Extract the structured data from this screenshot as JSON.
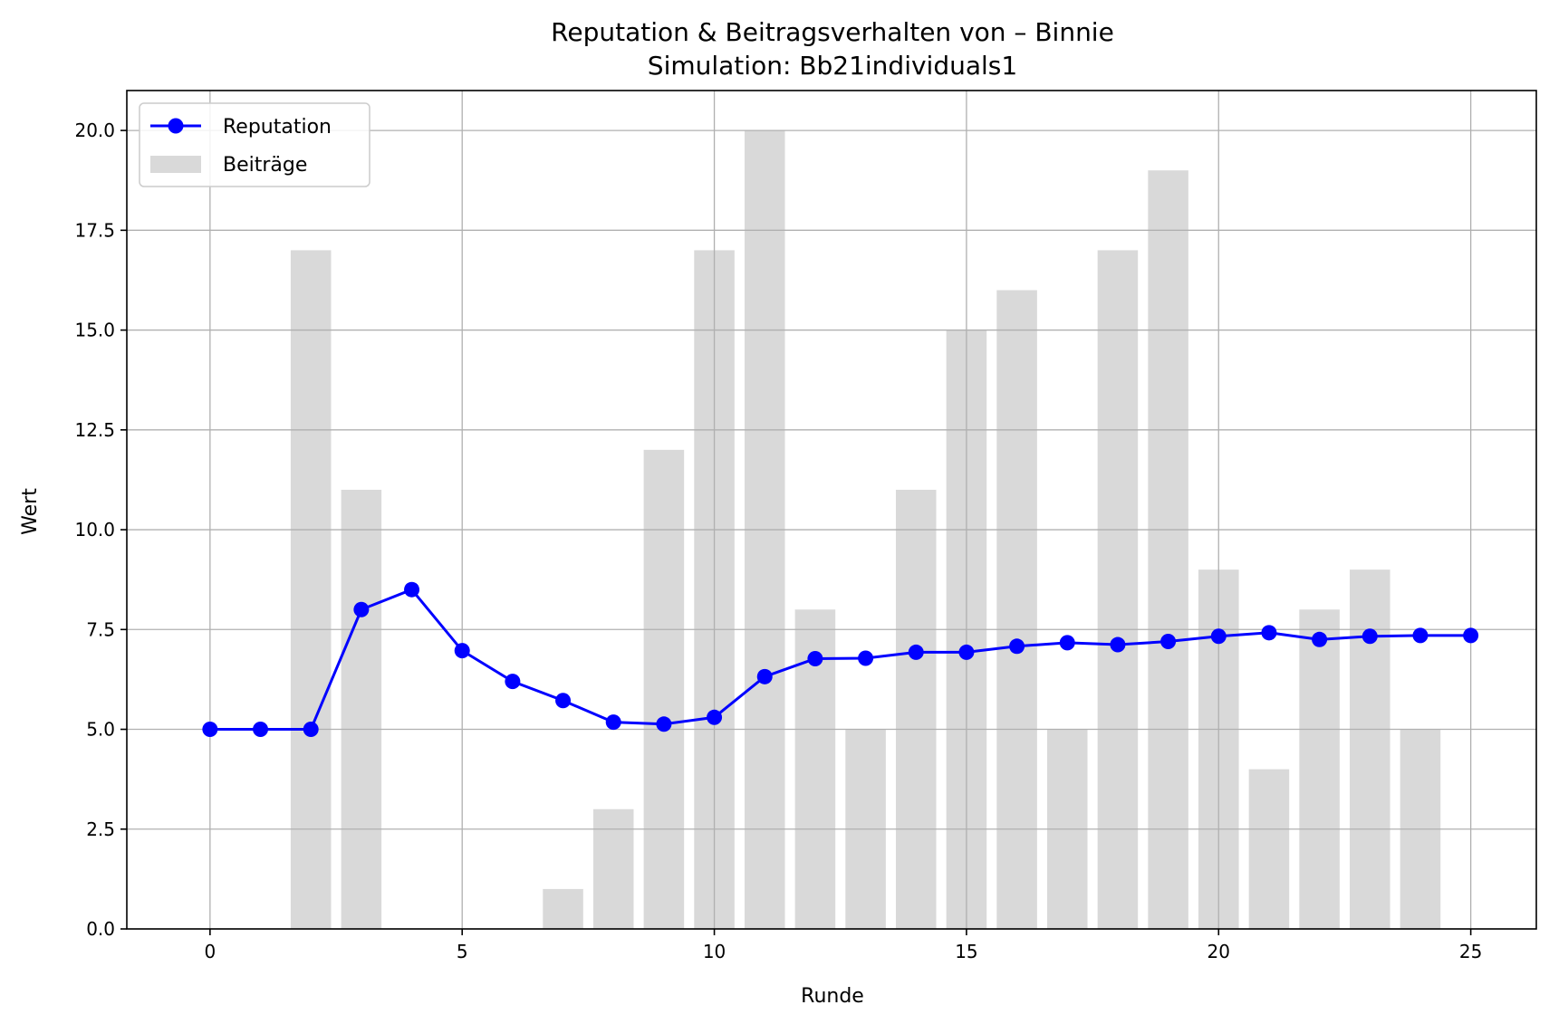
{
  "chart_data": {
    "type": "bar+line",
    "title": "Reputation & Beitragsverhalten von – Binnie",
    "subtitle": "Simulation: Bb21individuals1",
    "xlabel": "Runde",
    "ylabel": "Wert",
    "xlim": [
      -1.65,
      26.3
    ],
    "ylim": [
      0,
      21
    ],
    "xticks": [
      0,
      5,
      10,
      15,
      20,
      25
    ],
    "xtick_labels": [
      "0",
      "5",
      "10",
      "15",
      "20",
      "25"
    ],
    "yticks": [
      0,
      2.5,
      5,
      7.5,
      10,
      12.5,
      15,
      17.5,
      20
    ],
    "ytick_labels": [
      "0.0",
      "2.5",
      "5.0",
      "7.5",
      "10.0",
      "12.5",
      "15.0",
      "17.5",
      "20.0"
    ],
    "grid": true,
    "legend_position": "top-left",
    "x": [
      0,
      1,
      2,
      3,
      4,
      5,
      6,
      7,
      8,
      9,
      10,
      11,
      12,
      13,
      14,
      15,
      16,
      17,
      18,
      19,
      20,
      21,
      22,
      23,
      24,
      25
    ],
    "series": [
      {
        "name": "Reputation",
        "type": "line",
        "color": "#0000ff",
        "marker": "circle",
        "values": [
          5.0,
          5.0,
          5.0,
          8.0,
          8.5,
          6.97,
          6.2,
          5.72,
          5.18,
          5.13,
          5.3,
          6.32,
          6.77,
          6.78,
          6.93,
          6.93,
          7.08,
          7.17,
          7.12,
          7.2,
          7.33,
          7.42,
          7.25,
          7.33,
          7.35,
          7.35
        ]
      },
      {
        "name": "Beiträge",
        "type": "bar",
        "color": "#d9d9d9",
        "values": [
          0,
          0,
          17,
          11,
          0,
          0,
          0,
          1,
          3,
          12,
          17,
          20,
          8,
          5,
          11,
          15,
          16,
          5,
          17,
          19,
          9,
          4,
          8,
          9,
          5,
          0
        ]
      }
    ]
  }
}
